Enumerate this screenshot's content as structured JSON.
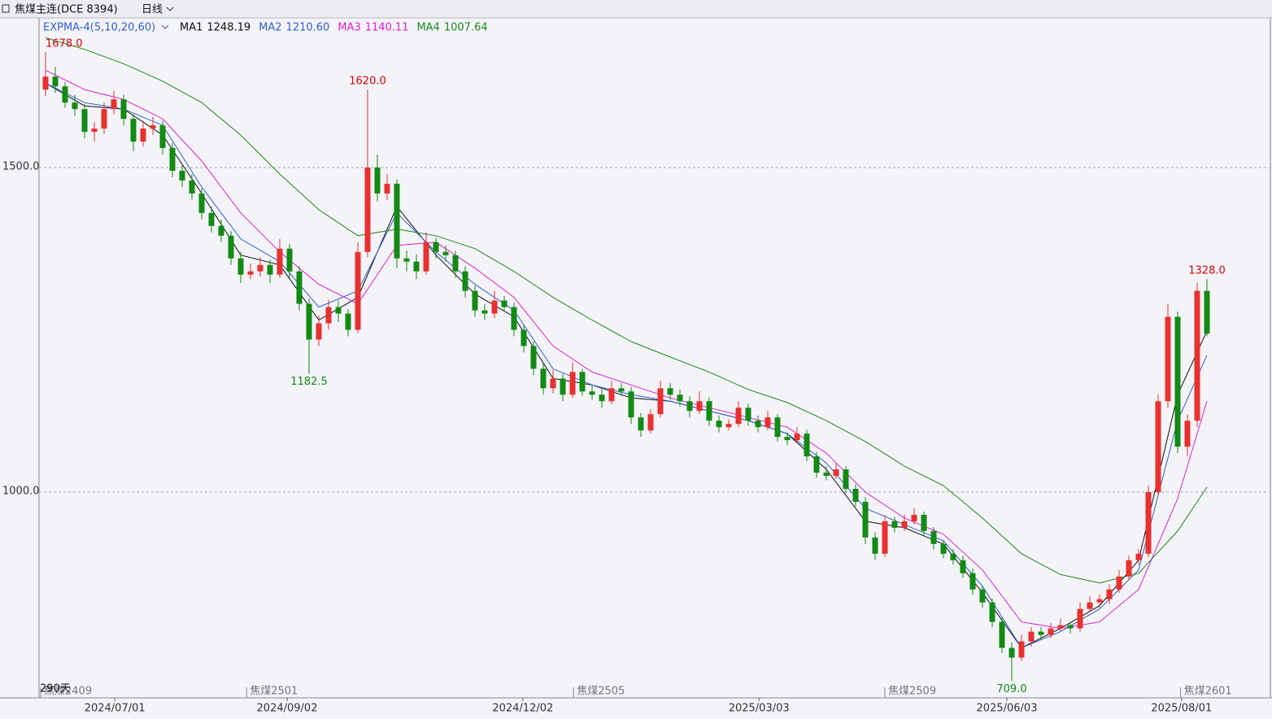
{
  "header": {
    "title": "焦煤主连(DCE  8394)",
    "period": "日线"
  },
  "chart_data": {
    "type": "candlestick",
    "indicator": "EXPMA-4(5,10,20,60)",
    "up_color": "#e8312f",
    "down_color": "#138a13",
    "ylim": [
      683,
      1723
    ],
    "yticks": [
      {
        "value": 1000,
        "label": "1000.0"
      },
      {
        "value": 1500,
        "label": "1500.0"
      }
    ],
    "grid": true,
    "xlim": [
      0,
      120
    ],
    "xticks": [
      {
        "value": 7.6,
        "label": "2024/07/01"
      },
      {
        "value": 25.25,
        "label": "2024/09/02"
      },
      {
        "value": 49.4,
        "label": "2024/12/02"
      },
      {
        "value": 73.6,
        "label": "2025/03/03"
      },
      {
        "value": 99,
        "label": "2025/06/03"
      },
      {
        "value": 116.9,
        "label": "2025/08/01"
      }
    ],
    "contracts": [
      {
        "value": 0,
        "label": "焦煤2409"
      },
      {
        "value": 21.1,
        "label": "焦煤2501"
      },
      {
        "value": 54.6,
        "label": "焦煤2505"
      },
      {
        "value": 86.5,
        "label": "焦煤2509"
      },
      {
        "value": 116.8,
        "label": "焦煤2601"
      }
    ],
    "days_label": "290天",
    "annotations": [
      {
        "x": 0,
        "value": 1678,
        "label": "1678.0",
        "color": "#e00000",
        "pos": "above"
      },
      {
        "x": 33,
        "value": 1620,
        "label": "1620.0",
        "color": "#e00000",
        "pos": "above"
      },
      {
        "x": 27,
        "value": 1182.5,
        "label": "1182.5",
        "color": "#138a13",
        "pos": "below"
      },
      {
        "x": 99,
        "value": 709,
        "label": "709.0",
        "color": "#138a13",
        "pos": "below"
      },
      {
        "x": 119,
        "value": 1328,
        "label": "1328.0",
        "color": "#e00000",
        "pos": "above"
      }
    ],
    "candles": [
      [
        1620,
        1678,
        1610,
        1640
      ],
      [
        1640,
        1655,
        1615,
        1625
      ],
      [
        1625,
        1632,
        1592,
        1600
      ],
      [
        1600,
        1612,
        1580,
        1590
      ],
      [
        1590,
        1598,
        1545,
        1555
      ],
      [
        1555,
        1570,
        1540,
        1560
      ],
      [
        1560,
        1600,
        1552,
        1590
      ],
      [
        1590,
        1618,
        1582,
        1605
      ],
      [
        1605,
        1612,
        1565,
        1575
      ],
      [
        1575,
        1582,
        1525,
        1540
      ],
      [
        1540,
        1572,
        1532,
        1560
      ],
      [
        1560,
        1578,
        1550,
        1565
      ],
      [
        1565,
        1572,
        1520,
        1530
      ],
      [
        1530,
        1538,
        1485,
        1495
      ],
      [
        1495,
        1505,
        1470,
        1480
      ],
      [
        1480,
        1490,
        1450,
        1460
      ],
      [
        1460,
        1468,
        1420,
        1430
      ],
      [
        1430,
        1440,
        1400,
        1410
      ],
      [
        1410,
        1420,
        1385,
        1395
      ],
      [
        1395,
        1402,
        1350,
        1360
      ],
      [
        1360,
        1370,
        1322,
        1335
      ],
      [
        1335,
        1352,
        1328,
        1340
      ],
      [
        1340,
        1362,
        1332,
        1350
      ],
      [
        1350,
        1358,
        1322,
        1335
      ],
      [
        1335,
        1390,
        1330,
        1375
      ],
      [
        1375,
        1382,
        1330,
        1340
      ],
      [
        1340,
        1348,
        1280,
        1290
      ],
      [
        1290,
        1298,
        1182.5,
        1235
      ],
      [
        1235,
        1272,
        1225,
        1260
      ],
      [
        1260,
        1296,
        1250,
        1285
      ],
      [
        1285,
        1295,
        1262,
        1275
      ],
      [
        1275,
        1282,
        1240,
        1250
      ],
      [
        1250,
        1385,
        1245,
        1370
      ],
      [
        1370,
        1620,
        1362,
        1500
      ],
      [
        1500,
        1520,
        1448,
        1460
      ],
      [
        1460,
        1490,
        1450,
        1475
      ],
      [
        1475,
        1482,
        1345,
        1360
      ],
      [
        1360,
        1372,
        1340,
        1355
      ],
      [
        1355,
        1366,
        1328,
        1340
      ],
      [
        1340,
        1400,
        1335,
        1385
      ],
      [
        1385,
        1392,
        1360,
        1370
      ],
      [
        1370,
        1380,
        1355,
        1365
      ],
      [
        1365,
        1372,
        1330,
        1340
      ],
      [
        1340,
        1348,
        1300,
        1310
      ],
      [
        1310,
        1318,
        1270,
        1280
      ],
      [
        1280,
        1290,
        1265,
        1275
      ],
      [
        1275,
        1310,
        1268,
        1295
      ],
      [
        1295,
        1302,
        1278,
        1285
      ],
      [
        1285,
        1292,
        1240,
        1250
      ],
      [
        1250,
        1258,
        1215,
        1225
      ],
      [
        1225,
        1232,
        1180,
        1190
      ],
      [
        1190,
        1198,
        1150,
        1160
      ],
      [
        1160,
        1188,
        1152,
        1175
      ],
      [
        1175,
        1182,
        1140,
        1150
      ],
      [
        1150,
        1200,
        1145,
        1185
      ],
      [
        1185,
        1190,
        1148,
        1155
      ],
      [
        1155,
        1165,
        1142,
        1150
      ],
      [
        1150,
        1158,
        1130,
        1140
      ],
      [
        1140,
        1172,
        1135,
        1160
      ],
      [
        1160,
        1168,
        1148,
        1155
      ],
      [
        1155,
        1162,
        1105,
        1115
      ],
      [
        1115,
        1122,
        1085,
        1095
      ],
      [
        1095,
        1128,
        1090,
        1120
      ],
      [
        1120,
        1172,
        1115,
        1160
      ],
      [
        1160,
        1168,
        1142,
        1150
      ],
      [
        1150,
        1158,
        1132,
        1140
      ],
      [
        1140,
        1148,
        1115,
        1125
      ],
      [
        1125,
        1155,
        1120,
        1140
      ],
      [
        1140,
        1146,
        1102,
        1110
      ],
      [
        1110,
        1118,
        1092,
        1100
      ],
      [
        1100,
        1112,
        1095,
        1105
      ],
      [
        1105,
        1140,
        1100,
        1130
      ],
      [
        1130,
        1136,
        1102,
        1110
      ],
      [
        1110,
        1118,
        1092,
        1100
      ],
      [
        1100,
        1125,
        1095,
        1115
      ],
      [
        1115,
        1120,
        1078,
        1085
      ],
      [
        1085,
        1092,
        1072,
        1080
      ],
      [
        1080,
        1100,
        1075,
        1090
      ],
      [
        1090,
        1096,
        1048,
        1055
      ],
      [
        1055,
        1062,
        1022,
        1030
      ],
      [
        1030,
        1040,
        1018,
        1025
      ],
      [
        1025,
        1045,
        1020,
        1035
      ],
      [
        1035,
        1040,
        998,
        1005
      ],
      [
        1005,
        1012,
        978,
        985
      ],
      [
        985,
        992,
        920,
        930
      ],
      [
        930,
        938,
        895,
        905
      ],
      [
        905,
        965,
        900,
        955
      ],
      [
        955,
        962,
        938,
        945
      ],
      [
        945,
        965,
        940,
        955
      ],
      [
        955,
        975,
        950,
        965
      ],
      [
        965,
        970,
        932,
        940
      ],
      [
        940,
        946,
        912,
        920
      ],
      [
        920,
        926,
        898,
        905
      ],
      [
        905,
        912,
        888,
        895
      ],
      [
        895,
        902,
        868,
        875
      ],
      [
        875,
        882,
        842,
        850
      ],
      [
        850,
        856,
        822,
        830
      ],
      [
        830,
        836,
        792,
        800
      ],
      [
        800,
        806,
        752,
        760
      ],
      [
        760,
        768,
        709,
        745
      ],
      [
        745,
        780,
        740,
        770
      ],
      [
        770,
        792,
        762,
        785
      ],
      [
        785,
        792,
        772,
        780
      ],
      [
        780,
        798,
        775,
        790
      ],
      [
        790,
        805,
        785,
        795
      ],
      [
        795,
        800,
        782,
        790
      ],
      [
        790,
        830,
        785,
        820
      ],
      [
        820,
        840,
        815,
        830
      ],
      [
        830,
        842,
        822,
        835
      ],
      [
        835,
        858,
        828,
        850
      ],
      [
        850,
        880,
        845,
        870
      ],
      [
        870,
        902,
        865,
        895
      ],
      [
        895,
        912,
        888,
        905
      ],
      [
        905,
        1010,
        900,
        1000
      ],
      [
        1000,
        1150,
        995,
        1140
      ],
      [
        1140,
        1290,
        1130,
        1270
      ],
      [
        1270,
        1278,
        1060,
        1070
      ],
      [
        1070,
        1120,
        1055,
        1110
      ],
      [
        1110,
        1322,
        1100,
        1310
      ],
      [
        1310,
        1328,
        1240,
        1244
      ]
    ],
    "ma_x": [
      0,
      4,
      8,
      12,
      16,
      20,
      24,
      28,
      32,
      36,
      40,
      44,
      48,
      52,
      56,
      60,
      64,
      68,
      72,
      76,
      80,
      84,
      88,
      92,
      96,
      100,
      104,
      108,
      112,
      116,
      119
    ],
    "series": [
      {
        "name": "MA1",
        "current": "1248.19",
        "color": "#111111",
        "values": [
          1630,
          1595,
          1590,
          1550,
          1460,
          1365,
          1350,
          1265,
          1300,
          1440,
          1365,
          1305,
          1270,
          1175,
          1165,
          1145,
          1140,
          1125,
          1110,
          1090,
          1035,
          955,
          945,
          920,
          845,
          760,
          790,
          825,
          895,
          1150,
          1248.19
        ]
      },
      {
        "name": "MA2",
        "current": "1210.60",
        "color": "#2f5fd0",
        "values": [
          1630,
          1600,
          1590,
          1565,
          1470,
          1390,
          1355,
          1285,
          1310,
          1430,
          1370,
          1320,
          1280,
          1190,
          1165,
          1150,
          1140,
          1125,
          1110,
          1090,
          1045,
          975,
          950,
          925,
          855,
          760,
          785,
          820,
          880,
          1110,
          1210.6
        ]
      },
      {
        "name": "MA3",
        "current": "1140.11",
        "color": "#e020d0",
        "values": [
          1650,
          1620,
          1605,
          1575,
          1510,
          1430,
          1370,
          1320,
          1290,
          1380,
          1385,
          1345,
          1300,
          1225,
          1185,
          1165,
          1145,
          1130,
          1115,
          1100,
          1060,
          1000,
          960,
          935,
          880,
          800,
          790,
          800,
          850,
          990,
          1140.11
        ]
      },
      {
        "name": "MA4",
        "current": "1007.64",
        "color": "#1a8a1a",
        "values": [
          1700,
          1682,
          1660,
          1633,
          1600,
          1550,
          1490,
          1435,
          1395,
          1405,
          1395,
          1375,
          1340,
          1300,
          1265,
          1232,
          1208,
          1185,
          1158,
          1138,
          1110,
          1078,
          1040,
          1010,
          960,
          905,
          873,
          860,
          875,
          940,
          1007.64
        ]
      }
    ]
  }
}
